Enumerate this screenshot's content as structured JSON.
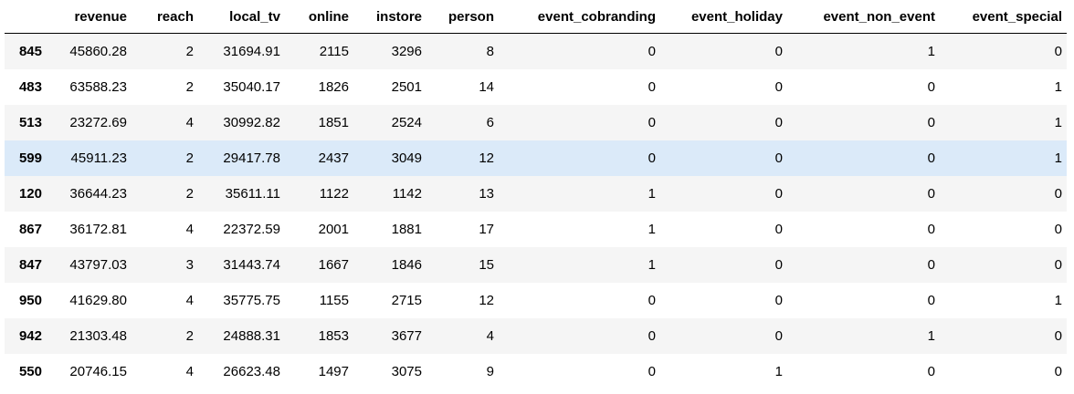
{
  "table": {
    "columns": [
      "revenue",
      "reach",
      "local_tv",
      "online",
      "instore",
      "person",
      "event_cobranding",
      "event_holiday",
      "event_non_event",
      "event_special"
    ],
    "rows": [
      {
        "index": "845",
        "cells": [
          "45860.28",
          "2",
          "31694.91",
          "2115",
          "3296",
          "8",
          "0",
          "0",
          "1",
          "0"
        ]
      },
      {
        "index": "483",
        "cells": [
          "63588.23",
          "2",
          "35040.17",
          "1826",
          "2501",
          "14",
          "0",
          "0",
          "0",
          "1"
        ]
      },
      {
        "index": "513",
        "cells": [
          "23272.69",
          "4",
          "30992.82",
          "1851",
          "2524",
          "6",
          "0",
          "0",
          "0",
          "1"
        ]
      },
      {
        "index": "599",
        "cells": [
          "45911.23",
          "2",
          "29417.78",
          "2437",
          "3049",
          "12",
          "0",
          "0",
          "0",
          "1"
        ],
        "highlighted": true
      },
      {
        "index": "120",
        "cells": [
          "36644.23",
          "2",
          "35611.11",
          "1122",
          "1142",
          "13",
          "1",
          "0",
          "0",
          "0"
        ]
      },
      {
        "index": "867",
        "cells": [
          "36172.81",
          "4",
          "22372.59",
          "2001",
          "1881",
          "17",
          "1",
          "0",
          "0",
          "0"
        ]
      },
      {
        "index": "847",
        "cells": [
          "43797.03",
          "3",
          "31443.74",
          "1667",
          "1846",
          "15",
          "1",
          "0",
          "0",
          "0"
        ]
      },
      {
        "index": "950",
        "cells": [
          "41629.80",
          "4",
          "35775.75",
          "1155",
          "2715",
          "12",
          "0",
          "0",
          "0",
          "1"
        ]
      },
      {
        "index": "942",
        "cells": [
          "21303.48",
          "2",
          "24888.31",
          "1853",
          "3677",
          "4",
          "0",
          "0",
          "1",
          "0"
        ]
      },
      {
        "index": "550",
        "cells": [
          "20746.15",
          "4",
          "26623.48",
          "1497",
          "3075",
          "9",
          "0",
          "1",
          "0",
          "0"
        ]
      }
    ]
  },
  "colors": {
    "row_stripe": "#f5f5f5",
    "row_hover": "#dbeaf9",
    "header_border": "#000000"
  }
}
